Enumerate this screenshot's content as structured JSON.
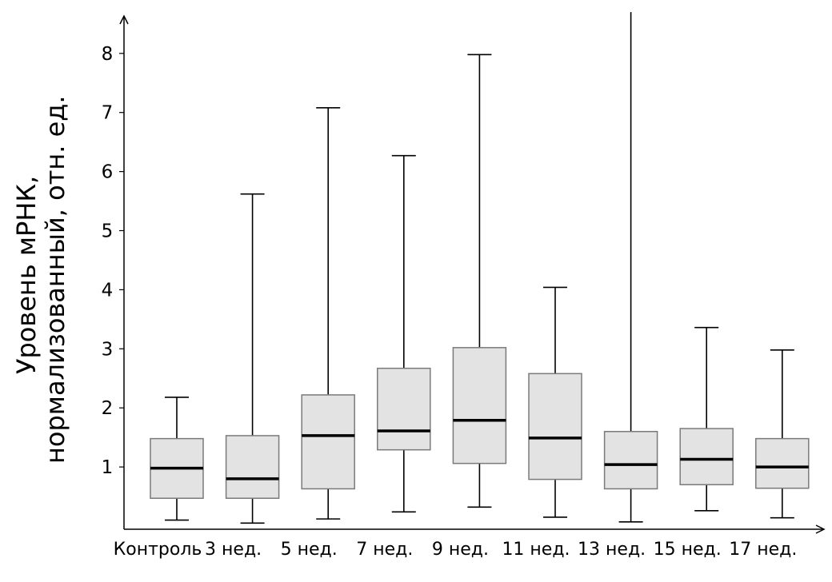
{
  "chart_data": {
    "type": "boxplot",
    "ylabel_line1": "Уровень мРНК,",
    "ylabel_line2": "нормализованный, отн. ед.",
    "yticks": [
      "1",
      "2",
      "3",
      "4",
      "5",
      "6",
      "7",
      "8"
    ],
    "ylim": [
      0,
      8.6
    ],
    "grid": false,
    "categories": [
      "Контроль",
      "3 нед.",
      "5 нед.",
      "7 нед.",
      "9 нед.",
      "11 нед.",
      "13 нед.",
      "15 нед.",
      "17 нед."
    ],
    "boxes": [
      {
        "category": "Контроль",
        "whisker_low": 0.1,
        "q1": 0.47,
        "median": 0.98,
        "q3": 1.48,
        "whisker_high": 2.18
      },
      {
        "category": "3 нед.",
        "whisker_low": 0.05,
        "q1": 0.47,
        "median": 0.8,
        "q3": 1.53,
        "whisker_high": 5.62
      },
      {
        "category": "5 нед.",
        "whisker_low": 0.12,
        "q1": 0.63,
        "median": 1.53,
        "q3": 2.22,
        "whisker_high": 7.08
      },
      {
        "category": "7 нед.",
        "whisker_low": 0.24,
        "q1": 1.29,
        "median": 1.61,
        "q3": 2.67,
        "whisker_high": 6.27
      },
      {
        "category": "9 нед.",
        "whisker_low": 0.32,
        "q1": 1.06,
        "median": 1.79,
        "q3": 3.02,
        "whisker_high": 7.98
      },
      {
        "category": "11 нед.",
        "whisker_low": 0.15,
        "q1": 0.79,
        "median": 1.49,
        "q3": 2.58,
        "whisker_high": 4.04
      },
      {
        "category": "13 нед.",
        "whisker_low": 0.07,
        "q1": 0.63,
        "median": 1.04,
        "q3": 1.6,
        "whisker_high": 8.7
      },
      {
        "category": "15 нед.",
        "whisker_low": 0.26,
        "q1": 0.7,
        "median": 1.13,
        "q3": 1.65,
        "whisker_high": 3.36
      },
      {
        "category": "17 нед.",
        "whisker_low": 0.14,
        "q1": 0.64,
        "median": 1.0,
        "q3": 1.48,
        "whisker_high": 2.98
      }
    ],
    "colors": {
      "box_fill": "#e3e3e3",
      "box_stroke": "#7a7a7a",
      "median": "#000000",
      "whisker": "#000000",
      "axis": "#000000"
    }
  }
}
